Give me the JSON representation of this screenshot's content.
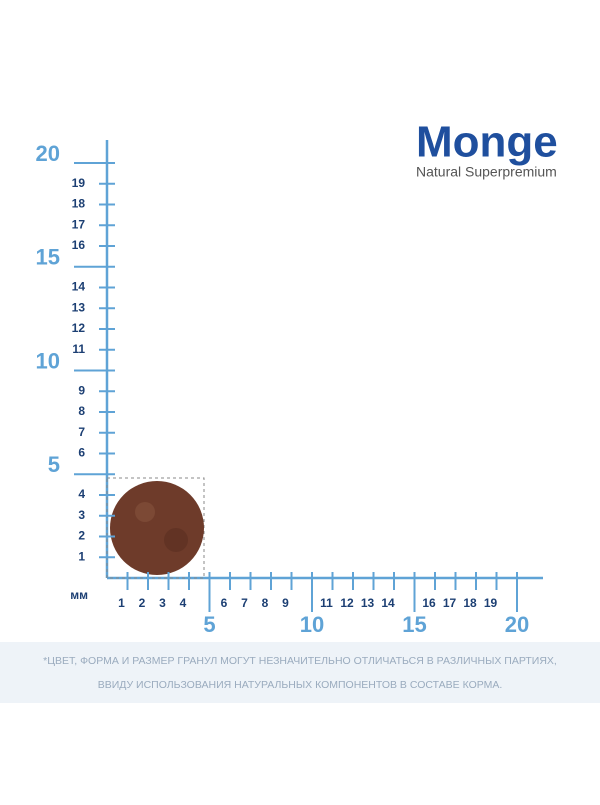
{
  "logo": {
    "brand": "Monge",
    "tagline": "Natural Superpremium"
  },
  "ruler": {
    "unit": "мм",
    "y_minor": [
      1,
      2,
      3,
      4,
      6,
      7,
      8,
      9,
      11,
      12,
      13,
      14,
      16,
      17,
      18,
      19
    ],
    "y_major": [
      5,
      10,
      15,
      20
    ],
    "x_minor": [
      1,
      2,
      3,
      4,
      6,
      7,
      8,
      9,
      11,
      12,
      13,
      14,
      16,
      17,
      18,
      19
    ],
    "x_major": [
      5,
      10,
      15,
      20
    ]
  },
  "footnote": [
    "*ЦВЕТ, ФОРМА И РАЗМЕР ГРАНУЛ МОГУТ НЕЗНАЧИТЕЛЬНО ОТЛИЧАТЬСЯ В РАЗЛИЧНЫХ ПАРТИЯХ,",
    "ВВИДУ ИСПОЛЬЗОВАНИЯ НАТУРАЛЬНЫХ КОМПОНЕНТОВ В СОСТАВЕ КОРМА."
  ]
}
